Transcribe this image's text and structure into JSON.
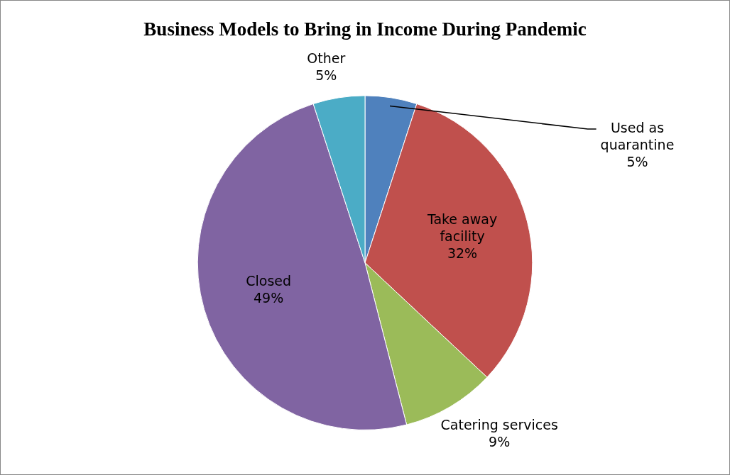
{
  "chart_data": {
    "type": "pie",
    "title": "Business Models to Bring in Income During Pandemic",
    "categories": [
      "Used as quarantine",
      "Take away facility",
      "Catering services",
      "Closed",
      "Other"
    ],
    "values": [
      5,
      32,
      9,
      49,
      5
    ],
    "colors": [
      "#4f81bd",
      "#c0504d",
      "#9bbb59",
      "#8064a2",
      "#4bacc6"
    ],
    "value_labels": [
      "5%",
      "32%",
      "9%",
      "49%",
      "5%"
    ],
    "legend": false
  }
}
